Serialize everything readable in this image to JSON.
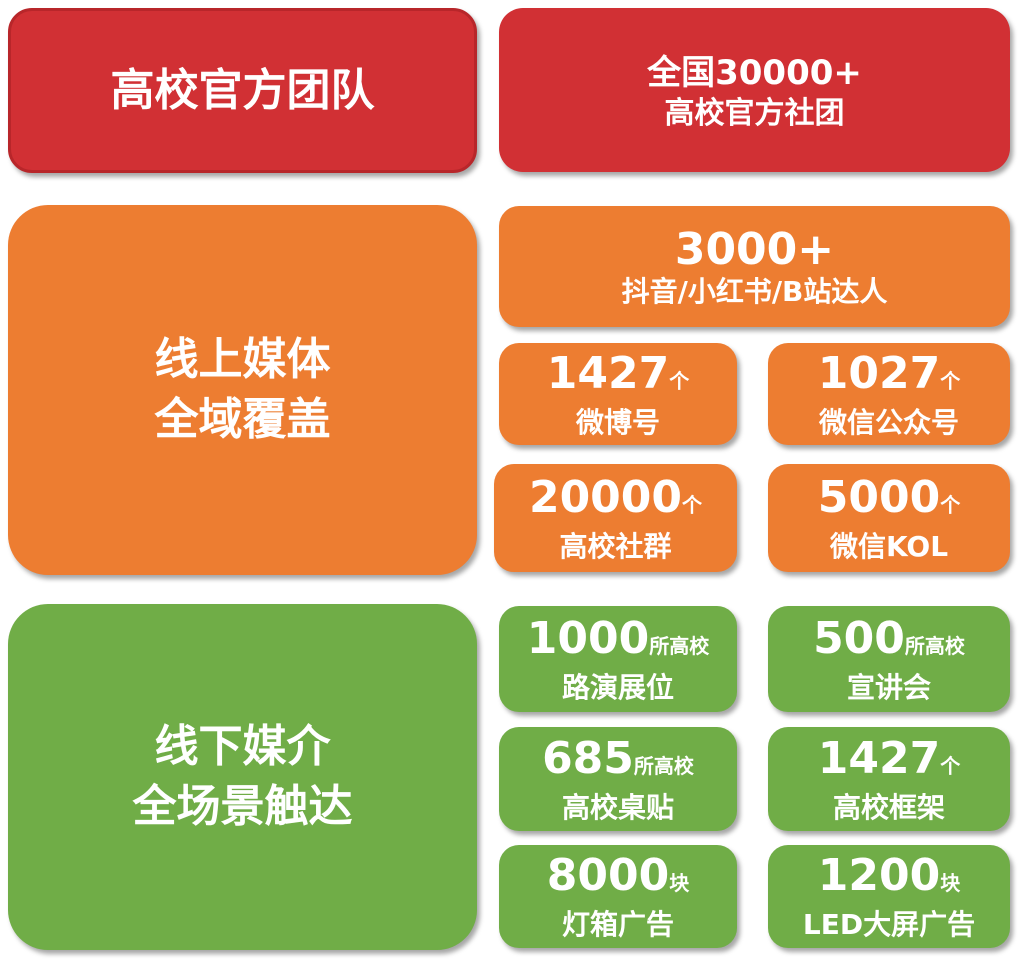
{
  "colors": {
    "red": "#d13034",
    "orange": "#ed7d31",
    "green": "#70ad47"
  },
  "sections": {
    "official": {
      "title": "高校官方团队",
      "stat": {
        "line1": "全国30000+",
        "line2": "高校官方社团"
      }
    },
    "online": {
      "title_line1": "线上媒体",
      "title_line2": "全域覆盖",
      "top": {
        "num": "3000+",
        "label": "抖音/小红书/B站达人"
      },
      "items": [
        {
          "num": "1427",
          "unit": "个",
          "label": "微博号"
        },
        {
          "num": "1027",
          "unit": "个",
          "label": "微信公众号"
        },
        {
          "num": "20000",
          "unit": "个",
          "label": "高校社群"
        },
        {
          "num": "5000",
          "unit": "个",
          "label": "微信KOL"
        }
      ]
    },
    "offline": {
      "title_line1": "线下媒介",
      "title_line2": "全场景触达",
      "items": [
        {
          "num": "1000",
          "unit": "所高校",
          "label": "路演展位"
        },
        {
          "num": "500",
          "unit": "所高校",
          "label": "宣讲会"
        },
        {
          "num": "685",
          "unit": "所高校",
          "label": "高校桌贴"
        },
        {
          "num": "1427",
          "unit": "个",
          "label": "高校框架"
        },
        {
          "num": "8000",
          "unit": "块",
          "label": "灯箱广告"
        },
        {
          "num": "1200",
          "unit": "块",
          "label": "LED大屏广告"
        }
      ]
    }
  }
}
